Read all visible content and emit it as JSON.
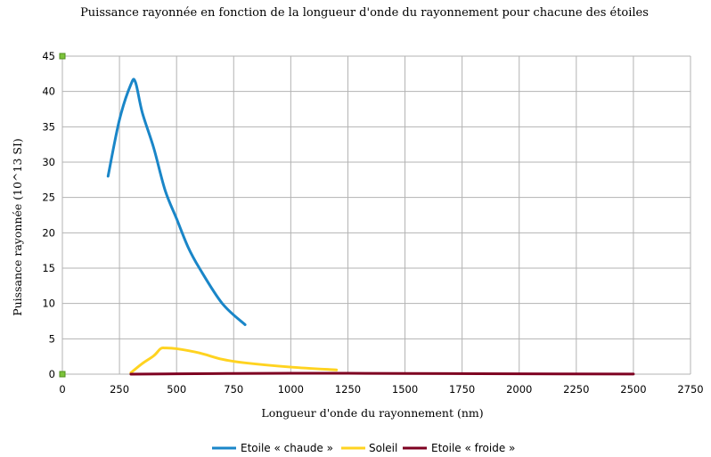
{
  "chart_data": {
    "type": "line",
    "title": "Puissance rayonnée en fonction de la longueur d'onde du rayonnement pour chacune des étoiles",
    "xlabel": "Longueur d'onde du rayonnement (nm)",
    "ylabel": "Puissance rayonnée (10^13 SI)",
    "xlim": [
      0,
      2750
    ],
    "ylim": [
      0,
      45
    ],
    "xticks": [
      0,
      250,
      500,
      750,
      1000,
      1250,
      1500,
      1750,
      2000,
      2250,
      2500,
      2750
    ],
    "yticks": [
      0,
      5,
      10,
      15,
      20,
      25,
      30,
      35,
      40,
      45
    ],
    "grid": true,
    "legend_position": "bottom",
    "series": [
      {
        "name": "Etoile « chaude »",
        "color": "#1a86c8",
        "x": [
          200,
          250,
          300,
          320,
          350,
          400,
          450,
          500,
          550,
          600,
          700,
          800
        ],
        "y": [
          28,
          36,
          41,
          41.3,
          37,
          32,
          26,
          22,
          18,
          15,
          10,
          7
        ]
      },
      {
        "name": "Soleil",
        "color": "#ffd320",
        "x": [
          300,
          350,
          400,
          430,
          450,
          500,
          600,
          700,
          800,
          1000,
          1200
        ],
        "y": [
          0.2,
          1.5,
          2.6,
          3.6,
          3.7,
          3.6,
          3.0,
          2.1,
          1.6,
          1.0,
          0.6
        ]
      },
      {
        "name": "Etoile « froide »",
        "color": "#7e0021",
        "x": [
          300,
          500,
          750,
          1000,
          1250,
          1500,
          2000,
          2500
        ],
        "y": [
          0.0,
          0.05,
          0.1,
          0.12,
          0.12,
          0.1,
          0.05,
          0.02
        ]
      }
    ]
  }
}
